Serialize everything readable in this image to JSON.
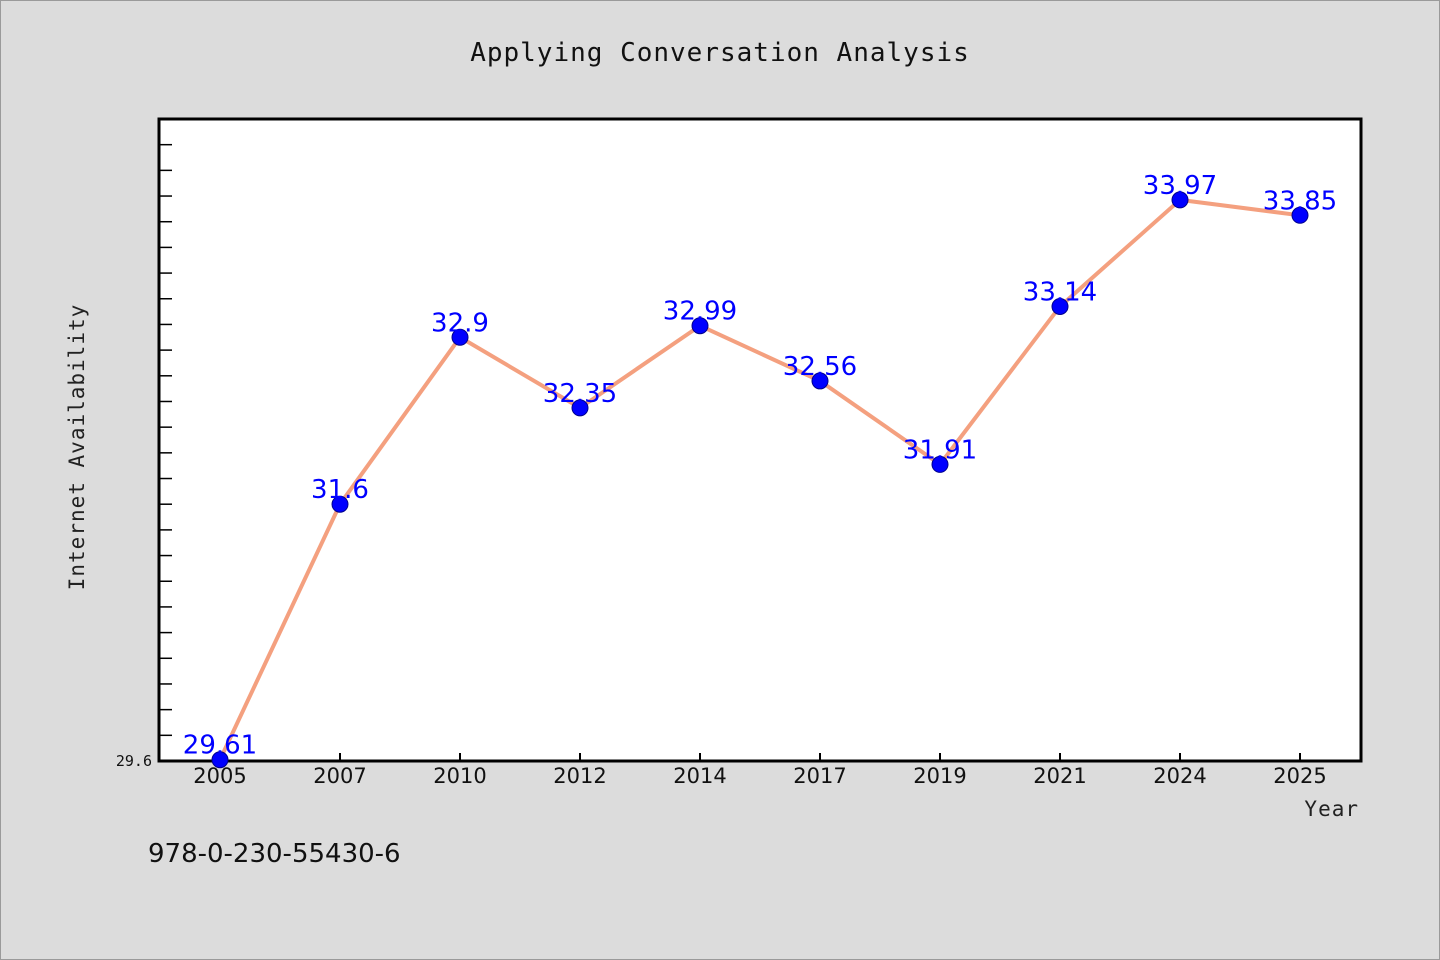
{
  "colors": {
    "background": "#dcdcdc",
    "plot_background": "#ffffff",
    "line": "#f4a07f",
    "marker": "#0000ff",
    "data_label": "#0000ff"
  },
  "chart_data": {
    "type": "line",
    "title": "Applying Conversation Analysis",
    "xlabel": "Year",
    "ylabel": "Internet Availability",
    "categories": [
      "2005",
      "2007",
      "2010",
      "2012",
      "2014",
      "2017",
      "2019",
      "2021",
      "2024",
      "2025"
    ],
    "series": [
      {
        "values": [
          29.61,
          31.6,
          32.9,
          32.35,
          32.99,
          32.56,
          31.91,
          33.14,
          33.97,
          33.85
        ],
        "labels": [
          "29.61",
          "31.6",
          "32.9",
          "32.35",
          "32.99",
          "32.56",
          "31.91",
          "33.14",
          "33.97",
          "33.85"
        ]
      }
    ],
    "ylim": [
      29.6,
      34.6
    ],
    "y_tick_labels": [
      "29.6"
    ],
    "grid": false,
    "legend": "none"
  },
  "footer_text": "978-0-230-55430-6"
}
